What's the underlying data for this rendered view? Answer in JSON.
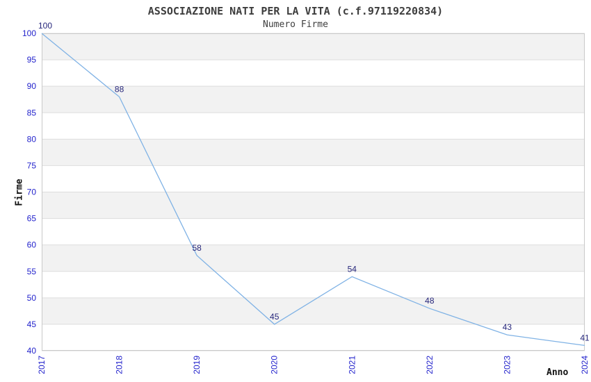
{
  "header": {
    "title": "ASSOCIAZIONE NATI PER LA VITA (c.f.97119220834)",
    "subtitle": "Numero Firme"
  },
  "chart_data": {
    "type": "line",
    "title": "ASSOCIAZIONE NATI PER LA VITA (c.f.97119220834)",
    "subtitle": "Numero Firme",
    "xlabel": "Anno",
    "ylabel": "Firme",
    "categories": [
      "2017",
      "2018",
      "2019",
      "2020",
      "2021",
      "2022",
      "2023",
      "2024"
    ],
    "series": [
      {
        "name": "Numero Firme",
        "values": [
          100,
          88,
          58,
          45,
          54,
          48,
          43,
          41
        ]
      }
    ],
    "point_labels": [
      "100",
      "88",
      "58",
      "45",
      "54",
      "48",
      "43",
      "41"
    ],
    "ylim": [
      40,
      100
    ],
    "ytick_step": 5,
    "ytick_labels": [
      "40",
      "45",
      "50",
      "55",
      "60",
      "65",
      "70",
      "75",
      "80",
      "85",
      "90",
      "95",
      "100"
    ],
    "grid": true,
    "band_fill_between_gridlines": true,
    "legend_position": "none"
  },
  "colors": {
    "line": "#7fb2e5",
    "point_label": "#26267b",
    "tick_label": "#2323cc",
    "band_gray": "#f2f2f2",
    "band_white": "#ffffff",
    "gridline": "#dddddd",
    "plot_border": "#c9c9c9",
    "title_text": "#3d3d3d",
    "axis_title_text": "#111111"
  }
}
